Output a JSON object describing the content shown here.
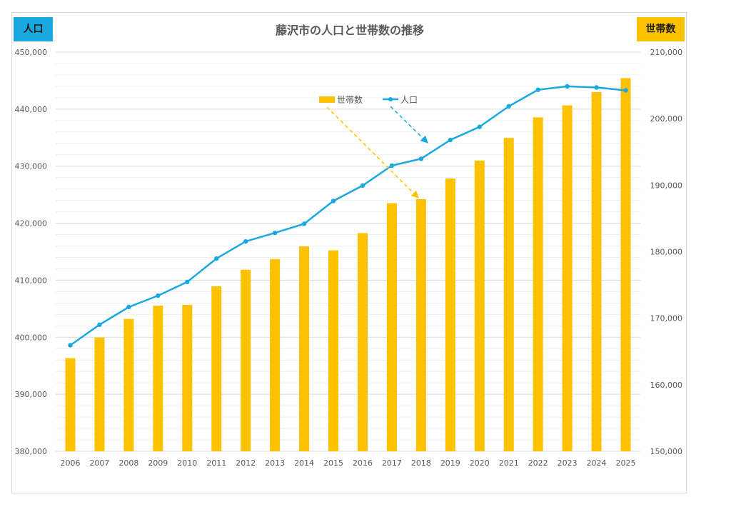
{
  "chart_data": {
    "type": "bar+line",
    "title": "藤沢市の人口と世帯数の推移",
    "left_axis_badge": "人口",
    "right_axis_badge": "世帯数",
    "categories": [
      "2006",
      "2007",
      "2008",
      "2009",
      "2010",
      "2011",
      "2012",
      "2013",
      "2014",
      "2015",
      "2016",
      "2017",
      "2018",
      "2019",
      "2020",
      "2021",
      "2022",
      "2023",
      "2024",
      "2025"
    ],
    "series": [
      {
        "name": "世帯数",
        "type": "bar",
        "axis": "right",
        "color": "#fcc200",
        "values": [
          164000,
          167100,
          169900,
          171900,
          172000,
          174800,
          177300,
          178900,
          180800,
          180200,
          182800,
          187300,
          187900,
          191000,
          193700,
          197100,
          200200,
          202000,
          204000,
          206100
        ]
      },
      {
        "name": "人口",
        "type": "line",
        "axis": "left",
        "color": "#1aa8e0",
        "values": [
          398600,
          402200,
          405300,
          407300,
          409700,
          413800,
          416800,
          418300,
          419900,
          423900,
          426600,
          430100,
          431300,
          434600,
          436900,
          440500,
          443400,
          444000,
          443800,
          443300
        ]
      }
    ],
    "y_left": {
      "min": 380000,
      "max": 450000,
      "step": 10000,
      "tick_labels": [
        "380,000",
        "390,000",
        "400,000",
        "410,000",
        "420,000",
        "430,000",
        "440,000",
        "450,000"
      ]
    },
    "y_right": {
      "min": 150000,
      "max": 210000,
      "step": 10000,
      "tick_labels": [
        "150,000",
        "160,000",
        "170,000",
        "180,000",
        "190,000",
        "200,000",
        "210,000"
      ]
    },
    "legend": {
      "position": "top-center",
      "items": [
        "世帯数",
        "人口"
      ]
    },
    "grid": true
  }
}
